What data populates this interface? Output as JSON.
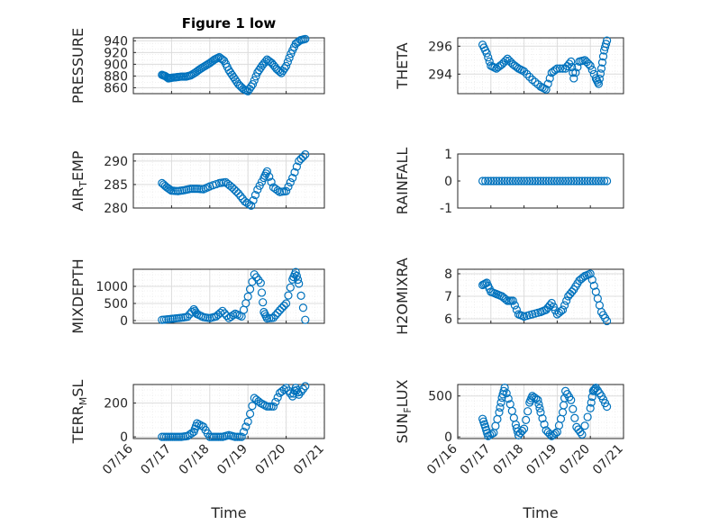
{
  "figure_title": "Figure 1 low",
  "colors": {
    "marker": "#0072BD",
    "axes": "#262626",
    "grid": "#dcdcdc"
  },
  "chart_data": [
    {
      "type": "scatter",
      "id": "pressure",
      "title": "Figure 1 low",
      "ylabel": "PRESSURE",
      "xlabel": "",
      "xlim": [
        "07/16",
        "07/21"
      ],
      "ylim": [
        850,
        945
      ],
      "yticks": [
        860,
        880,
        900,
        920,
        940
      ],
      "xticks": [],
      "grid": true,
      "points": [
        [
          "07/16 18:00",
          882
        ],
        [
          "07/16 20:00",
          880
        ],
        [
          "07/16 22:00",
          876
        ],
        [
          "07/17 00:00",
          877
        ],
        [
          "07/17 03:00",
          878
        ],
        [
          "07/17 06:00",
          879
        ],
        [
          "07/17 09:00",
          879
        ],
        [
          "07/17 12:00",
          881
        ],
        [
          "07/17 15:00",
          886
        ],
        [
          "07/17 18:00",
          892
        ],
        [
          "07/17 21:00",
          897
        ],
        [
          "07/18 00:00",
          902
        ],
        [
          "07/18 03:00",
          908
        ],
        [
          "07/18 06:00",
          912
        ],
        [
          "07/18 09:00",
          906
        ],
        [
          "07/18 12:00",
          890
        ],
        [
          "07/18 15:00",
          878
        ],
        [
          "07/18 18:00",
          866
        ],
        [
          "07/18 21:00",
          858
        ],
        [
          "07/19 00:00",
          854
        ],
        [
          "07/19 03:00",
          866
        ],
        [
          "07/19 06:00",
          886
        ],
        [
          "07/19 09:00",
          898
        ],
        [
          "07/19 12:00",
          908
        ],
        [
          "07/19 15:00",
          902
        ],
        [
          "07/19 18:00",
          892
        ],
        [
          "07/19 21:00",
          885
        ],
        [
          "07/20 00:00",
          897
        ],
        [
          "07/20 03:00",
          918
        ],
        [
          "07/20 06:00",
          935
        ],
        [
          "07/20 09:00",
          941
        ],
        [
          "07/20 12:00",
          943
        ]
      ]
    },
    {
      "type": "scatter",
      "id": "theta",
      "ylabel": "THETA",
      "xlabel": "",
      "xlim": [
        "07/16",
        "07/21"
      ],
      "ylim": [
        292.6,
        296.6
      ],
      "yticks": [
        294,
        296
      ],
      "xticks": [],
      "grid": true,
      "points": [
        [
          "07/16 18:00",
          296.1
        ],
        [
          "07/16 21:00",
          295.5
        ],
        [
          "07/17 00:00",
          294.6
        ],
        [
          "07/17 04:00",
          294.4
        ],
        [
          "07/17 08:00",
          294.7
        ],
        [
          "07/17 12:00",
          295.1
        ],
        [
          "07/17 16:00",
          294.7
        ],
        [
          "07/17 20:00",
          294.4
        ],
        [
          "07/18 00:00",
          294.2
        ],
        [
          "07/18 06:00",
          293.6
        ],
        [
          "07/18 12:00",
          293.1
        ],
        [
          "07/18 16:00",
          292.9
        ],
        [
          "07/18 20:00",
          294.1
        ],
        [
          "07/19 00:00",
          294.4
        ],
        [
          "07/19 06:00",
          294.4
        ],
        [
          "07/19 10:00",
          294.9
        ],
        [
          "07/19 12:00",
          293.7
        ],
        [
          "07/19 16:00",
          294.9
        ],
        [
          "07/19 20:00",
          295.0
        ],
        [
          "07/20 00:00",
          294.6
        ],
        [
          "07/20 04:00",
          293.7
        ],
        [
          "07/20 06:00",
          293.3
        ],
        [
          "07/20 08:00",
          294.4
        ],
        [
          "07/20 10:00",
          295.7
        ],
        [
          "07/20 12:00",
          296.4
        ]
      ]
    },
    {
      "type": "scatter",
      "id": "air_temp",
      "ylabel": "AIR_TEMP",
      "xlabel": "",
      "xlim": [
        "07/16",
        "07/21"
      ],
      "ylim": [
        280,
        291.5
      ],
      "yticks": [
        280,
        285,
        290
      ],
      "xticks": [],
      "grid": true,
      "points": [
        [
          "07/16 18:00",
          285.3
        ],
        [
          "07/16 21:00",
          284.4
        ],
        [
          "07/17 00:00",
          283.7
        ],
        [
          "07/17 04:00",
          283.6
        ],
        [
          "07/17 08:00",
          283.8
        ],
        [
          "07/17 12:00",
          284.1
        ],
        [
          "07/17 16:00",
          284.1
        ],
        [
          "07/17 20:00",
          284.0
        ],
        [
          "07/18 00:00",
          284.6
        ],
        [
          "07/18 06:00",
          285.3
        ],
        [
          "07/18 10:00",
          285.5
        ],
        [
          "07/18 14:00",
          284.4
        ],
        [
          "07/18 18:00",
          283.1
        ],
        [
          "07/18 22:00",
          281.4
        ],
        [
          "07/19 02:00",
          280.5
        ],
        [
          "07/19 06:00",
          283.9
        ],
        [
          "07/19 10:00",
          286.4
        ],
        [
          "07/19 12:00",
          287.8
        ],
        [
          "07/19 16:00",
          284.4
        ],
        [
          "07/19 20:00",
          283.4
        ],
        [
          "07/20 00:00",
          283.6
        ],
        [
          "07/20 04:00",
          286.4
        ],
        [
          "07/20 08:00",
          290.0
        ],
        [
          "07/20 12:00",
          291.4
        ]
      ]
    },
    {
      "type": "scatter",
      "id": "rainfall",
      "ylabel": "RAINFALL",
      "xlabel": "",
      "xlim": [
        "07/16",
        "07/21"
      ],
      "ylim": [
        -1,
        1
      ],
      "yticks": [
        -1,
        0,
        1
      ],
      "xticks": [],
      "grid": false,
      "points": [
        [
          "07/16 18:00",
          0
        ],
        [
          "07/17 00:00",
          0
        ],
        [
          "07/17 06:00",
          0
        ],
        [
          "07/17 12:00",
          0
        ],
        [
          "07/17 18:00",
          0
        ],
        [
          "07/18 00:00",
          0
        ],
        [
          "07/18 06:00",
          0
        ],
        [
          "07/18 12:00",
          0
        ],
        [
          "07/18 18:00",
          0
        ],
        [
          "07/19 00:00",
          0
        ],
        [
          "07/19 06:00",
          0
        ],
        [
          "07/19 12:00",
          0
        ],
        [
          "07/19 18:00",
          0
        ],
        [
          "07/20 00:00",
          0
        ],
        [
          "07/20 06:00",
          0
        ],
        [
          "07/20 12:00",
          0
        ]
      ]
    },
    {
      "type": "scatter",
      "id": "mixdepth",
      "ylabel": "MIXDEPTH",
      "xlabel": "",
      "xlim": [
        "07/16",
        "07/21"
      ],
      "ylim": [
        -80,
        1500
      ],
      "yticks": [
        0,
        500,
        1000
      ],
      "xticks": [],
      "grid": true,
      "points": [
        [
          "07/16 18:00",
          20
        ],
        [
          "07/16 22:00",
          40
        ],
        [
          "07/17 02:00",
          60
        ],
        [
          "07/17 06:00",
          80
        ],
        [
          "07/17 10:00",
          110
        ],
        [
          "07/17 14:00",
          330
        ],
        [
          "07/17 16:00",
          190
        ],
        [
          "07/17 20:00",
          100
        ],
        [
          "07/18 00:00",
          70
        ],
        [
          "07/18 04:00",
          120
        ],
        [
          "07/18 08:00",
          280
        ],
        [
          "07/18 12:00",
          70
        ],
        [
          "07/18 16:00",
          200
        ],
        [
          "07/18 20:00",
          120
        ],
        [
          "07/19 00:00",
          700
        ],
        [
          "07/19 04:00",
          1350
        ],
        [
          "07/19 08:00",
          1100
        ],
        [
          "07/19 10:00",
          250
        ],
        [
          "07/19 12:00",
          60
        ],
        [
          "07/19 16:00",
          80
        ],
        [
          "07/19 20:00",
          300
        ],
        [
          "07/20 00:00",
          500
        ],
        [
          "07/20 04:00",
          1200
        ],
        [
          "07/20 06:00",
          1420
        ],
        [
          "07/20 08:00",
          1080
        ],
        [
          "07/20 12:00",
          20
        ]
      ]
    },
    {
      "type": "scatter",
      "id": "h2omixra",
      "ylabel": "H2OMIXRA",
      "xlabel": "",
      "xlim": [
        "07/16",
        "07/21"
      ],
      "ylim": [
        5.8,
        8.2
      ],
      "yticks": [
        6,
        7,
        8
      ],
      "xticks": [],
      "grid": true,
      "points": [
        [
          "07/16 18:00",
          7.5
        ],
        [
          "07/16 21:00",
          7.6
        ],
        [
          "07/17 00:00",
          7.2
        ],
        [
          "07/17 04:00",
          7.1
        ],
        [
          "07/17 08:00",
          7.0
        ],
        [
          "07/17 12:00",
          6.8
        ],
        [
          "07/17 16:00",
          6.8
        ],
        [
          "07/17 20:00",
          6.2
        ],
        [
          "07/18 00:00",
          6.1
        ],
        [
          "07/18 06:00",
          6.2
        ],
        [
          "07/18 12:00",
          6.3
        ],
        [
          "07/18 16:00",
          6.4
        ],
        [
          "07/18 20:00",
          6.7
        ],
        [
          "07/19 00:00",
          6.2
        ],
        [
          "07/19 04:00",
          6.4
        ],
        [
          "07/19 08:00",
          7.0
        ],
        [
          "07/19 12:00",
          7.3
        ],
        [
          "07/19 16:00",
          7.7
        ],
        [
          "07/19 20:00",
          7.9
        ],
        [
          "07/20 00:00",
          8.0
        ],
        [
          "07/20 04:00",
          7.2
        ],
        [
          "07/20 08:00",
          6.3
        ],
        [
          "07/20 12:00",
          5.9
        ]
      ]
    },
    {
      "type": "scatter",
      "id": "terr_msl",
      "ylabel": "TERR_MSL",
      "xlabel": "Time",
      "xlim": [
        "07/16",
        "07/21"
      ],
      "ylim": [
        -10,
        310
      ],
      "yticks": [
        0,
        200
      ],
      "xticks": [
        "07/16",
        "07/17",
        "07/18",
        "07/19",
        "07/20",
        "07/21"
      ],
      "grid": true,
      "points": [
        [
          "07/16 18:00",
          0
        ],
        [
          "07/16 22:00",
          0
        ],
        [
          "07/17 02:00",
          0
        ],
        [
          "07/17 06:00",
          0
        ],
        [
          "07/17 10:00",
          5
        ],
        [
          "07/17 14:00",
          30
        ],
        [
          "07/17 16:00",
          80
        ],
        [
          "07/17 20:00",
          60
        ],
        [
          "07/18 00:00",
          0
        ],
        [
          "07/18 04:00",
          0
        ],
        [
          "07/18 08:00",
          0
        ],
        [
          "07/18 12:00",
          10
        ],
        [
          "07/18 16:00",
          0
        ],
        [
          "07/18 20:00",
          0
        ],
        [
          "07/19 00:00",
          90
        ],
        [
          "07/19 04:00",
          230
        ],
        [
          "07/19 08:00",
          200
        ],
        [
          "07/19 12:00",
          180
        ],
        [
          "07/19 16:00",
          180
        ],
        [
          "07/19 20:00",
          260
        ],
        [
          "07/20 00:00",
          290
        ],
        [
          "07/20 04:00",
          240
        ],
        [
          "07/20 06:00",
          290
        ],
        [
          "07/20 08:00",
          250
        ],
        [
          "07/20 12:00",
          300
        ]
      ]
    },
    {
      "type": "scatter",
      "id": "sun_flux",
      "ylabel": "SUN_FLUX",
      "xlabel": "Time",
      "xlim": [
        "07/16",
        "07/21"
      ],
      "ylim": [
        -20,
        640
      ],
      "yticks": [
        0,
        500
      ],
      "xticks": [
        "07/16",
        "07/17",
        "07/18",
        "07/19",
        "07/20",
        "07/21"
      ],
      "grid": true,
      "points": [
        [
          "07/16 18:00",
          220
        ],
        [
          "07/16 20:00",
          120
        ],
        [
          "07/16 22:00",
          10
        ],
        [
          "07/17 02:00",
          50
        ],
        [
          "07/17 06:00",
          300
        ],
        [
          "07/17 08:00",
          480
        ],
        [
          "07/17 10:00",
          600
        ],
        [
          "07/17 14:00",
          400
        ],
        [
          "07/17 18:00",
          150
        ],
        [
          "07/17 20:00",
          20
        ],
        [
          "07/18 00:00",
          100
        ],
        [
          "07/18 04:00",
          420
        ],
        [
          "07/18 06:00",
          500
        ],
        [
          "07/18 10:00",
          450
        ],
        [
          "07/18 12:00",
          300
        ],
        [
          "07/18 16:00",
          80
        ],
        [
          "07/18 20:00",
          10
        ],
        [
          "07/19 00:00",
          60
        ],
        [
          "07/19 04:00",
          300
        ],
        [
          "07/19 06:00",
          560
        ],
        [
          "07/19 10:00",
          450
        ],
        [
          "07/19 14:00",
          120
        ],
        [
          "07/19 18:00",
          30
        ],
        [
          "07/20 00:00",
          350
        ],
        [
          "07/20 02:00",
          560
        ],
        [
          "07/20 04:00",
          600
        ],
        [
          "07/20 08:00",
          500
        ],
        [
          "07/20 12:00",
          370
        ]
      ]
    }
  ]
}
